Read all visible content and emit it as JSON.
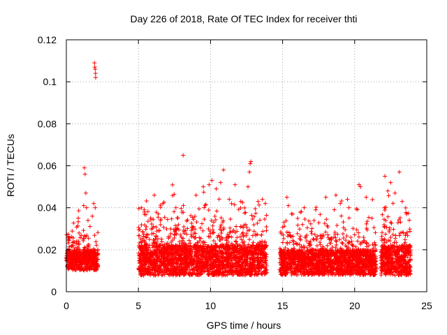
{
  "chart_data": {
    "type": "scatter",
    "title": "Day 226 of 2018, Rate Of TEC Index for receiver thti",
    "xlabel": "GPS time / hours",
    "ylabel": "ROTI / TECUs",
    "xlim": [
      0,
      25
    ],
    "ylim": [
      0,
      0.12
    ],
    "x_ticks": [
      0,
      5,
      10,
      15,
      20,
      25
    ],
    "x_tick_labels": [
      "0",
      "5",
      "10",
      "15",
      "20",
      "25"
    ],
    "y_ticks": [
      0,
      0.02,
      0.04,
      0.06,
      0.08,
      0.1,
      0.12
    ],
    "y_tick_labels": [
      "0",
      "0.02",
      "0.04",
      "0.06",
      "0.08",
      "0.1",
      "0.12"
    ],
    "grid": true,
    "marker": "+",
    "color": "#ff0000",
    "series": [
      {
        "name": "ROTI",
        "segments": [
          {
            "x_start": 0.0,
            "x_end": 2.2,
            "baseline": 0.015,
            "spread": 0.008
          },
          {
            "x_start": 5.0,
            "x_end": 13.9,
            "baseline": 0.015,
            "spread": 0.012
          },
          {
            "x_start": 14.8,
            "x_end": 21.5,
            "baseline": 0.014,
            "spread": 0.01
          },
          {
            "x_start": 21.8,
            "x_end": 23.9,
            "baseline": 0.015,
            "spread": 0.012
          }
        ],
        "highlights": [
          [
            1.25,
            0.059
          ],
          [
            1.3,
            0.056
          ],
          [
            1.35,
            0.047
          ],
          [
            1.2,
            0.041
          ],
          [
            1.4,
            0.04
          ],
          [
            1.5,
            0.034
          ],
          [
            1.9,
            0.042
          ],
          [
            2.0,
            0.04
          ],
          [
            1.8,
            0.036
          ],
          [
            1.95,
            0.109
          ],
          [
            1.97,
            0.107
          ],
          [
            2.0,
            0.106
          ],
          [
            2.02,
            0.104
          ],
          [
            2.03,
            0.102
          ],
          [
            5.2,
            0.04
          ],
          [
            5.4,
            0.039
          ],
          [
            6.1,
            0.046
          ],
          [
            6.7,
            0.042
          ],
          [
            7.6,
            0.04
          ],
          [
            8.1,
            0.065
          ],
          [
            9.0,
            0.046
          ],
          [
            9.5,
            0.05
          ],
          [
            9.9,
            0.051
          ],
          [
            10.1,
            0.053
          ],
          [
            10.4,
            0.049
          ],
          [
            10.7,
            0.052
          ],
          [
            10.9,
            0.058
          ],
          [
            11.3,
            0.044
          ],
          [
            11.7,
            0.051
          ],
          [
            12.1,
            0.043
          ],
          [
            12.6,
            0.05
          ],
          [
            12.8,
            0.062
          ],
          [
            12.75,
            0.061
          ],
          [
            12.7,
            0.057
          ],
          [
            13.3,
            0.043
          ],
          [
            13.6,
            0.044
          ],
          [
            13.8,
            0.042
          ],
          [
            15.1,
            0.033
          ],
          [
            15.3,
            0.045
          ],
          [
            15.4,
            0.041
          ],
          [
            15.7,
            0.037
          ],
          [
            16.5,
            0.04
          ],
          [
            17.3,
            0.039
          ],
          [
            18.0,
            0.045
          ],
          [
            18.7,
            0.046
          ],
          [
            19.0,
            0.042
          ],
          [
            19.5,
            0.044
          ],
          [
            19.6,
            0.04
          ],
          [
            20.3,
            0.051
          ],
          [
            20.4,
            0.05
          ],
          [
            20.8,
            0.045
          ],
          [
            21.2,
            0.035
          ],
          [
            22.1,
            0.055
          ],
          [
            22.3,
            0.048
          ],
          [
            22.5,
            0.052
          ],
          [
            22.8,
            0.047
          ],
          [
            23.1,
            0.057
          ],
          [
            23.3,
            0.043
          ],
          [
            23.6,
            0.037
          ]
        ]
      }
    ]
  }
}
